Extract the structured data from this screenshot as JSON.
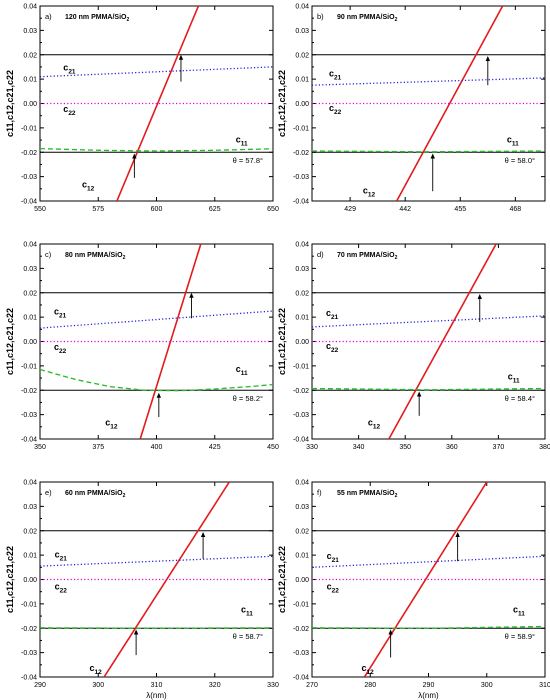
{
  "chart_data": [
    {
      "type": "line",
      "panel_label": "a)",
      "title": "120 nm PMMA/SiO",
      "title_sub": "2",
      "angle": "θ = 57.8°",
      "ylabel": "c11,c12,c21,c22",
      "xlabel": "",
      "xlim": [
        550,
        650
      ],
      "ylim": [
        -0.04,
        0.04
      ],
      "xticks": [
        "550",
        "575",
        "600",
        "625",
        "650"
      ],
      "yticks": [
        "-0.04",
        "-0.03",
        "-0.02",
        "-0.01",
        "0.00",
        "0.01",
        "0.02",
        "0.03",
        "0.04"
      ],
      "hlines": [
        0.02,
        -0.02
      ],
      "series": [
        {
          "name": "c12",
          "style": "solid",
          "color": "#e41a1c",
          "x": [
            583,
            618
          ],
          "y": [
            -0.04,
            0.04
          ]
        },
        {
          "name": "c21",
          "style": "dotted",
          "color": "#2222dd",
          "x": [
            550,
            650
          ],
          "y": [
            0.011,
            0.015
          ]
        },
        {
          "name": "c22",
          "style": "dotted",
          "color": "#e000e0",
          "x": [
            550,
            650
          ],
          "y": [
            0.0,
            0.0
          ]
        },
        {
          "name": "c11",
          "style": "dashed",
          "color": "#22bb22",
          "x": [
            550,
            575,
            600,
            625,
            650
          ],
          "y": [
            -0.0185,
            -0.0192,
            -0.0195,
            -0.0192,
            -0.0186
          ]
        }
      ],
      "arrows": [
        {
          "x": 610.5,
          "y_from": 0.009,
          "y_to": 0.02
        },
        {
          "x": 590.5,
          "y_from": -0.0305,
          "y_to": -0.0205
        }
      ],
      "labels": [
        {
          "text": "c",
          "sub": "21",
          "x": 560,
          "y": 0.0135
        },
        {
          "text": "c",
          "sub": "22",
          "x": 560,
          "y": -0.0035
        },
        {
          "text": "c",
          "sub": "11",
          "x": 634,
          "y": -0.016
        },
        {
          "text": "c",
          "sub": "12",
          "x": 568,
          "y": -0.0345
        }
      ]
    },
    {
      "type": "line",
      "panel_label": "b)",
      "title": "90 nm PMMA/SiO",
      "title_sub": "2",
      "angle": "θ = 58.0°",
      "ylabel": "c11,c12,c21,c22",
      "xlabel": "",
      "xlim": [
        420,
        475
      ],
      "ylim": [
        -0.04,
        0.04
      ],
      "xticks": [
        "429",
        "442",
        "455",
        "468"
      ],
      "xtick_values": [
        429,
        442,
        455,
        468
      ],
      "yticks": [
        "-0.04",
        "-0.03",
        "-0.02",
        "-0.01",
        "0.00",
        "0.01",
        "0.02",
        "0.03",
        "0.04"
      ],
      "hlines": [
        0.02,
        -0.02
      ],
      "series": [
        {
          "name": "c12",
          "style": "solid",
          "color": "#e41a1c",
          "x": [
            440,
            465
          ],
          "y": [
            -0.04,
            0.04
          ]
        },
        {
          "name": "c21",
          "style": "dotted",
          "color": "#2222dd",
          "x": [
            420,
            475
          ],
          "y": [
            0.0075,
            0.0105
          ]
        },
        {
          "name": "c22",
          "style": "dotted",
          "color": "#e000e0",
          "x": [
            420,
            475
          ],
          "y": [
            0.0,
            0.0
          ]
        },
        {
          "name": "c11",
          "style": "dashed",
          "color": "#22bb22",
          "x": [
            420,
            447,
            475
          ],
          "y": [
            -0.0195,
            -0.0198,
            -0.0195
          ]
        }
      ],
      "arrows": [
        {
          "x": 461.5,
          "y_from": 0.0075,
          "y_to": 0.0195
        },
        {
          "x": 448.5,
          "y_from": -0.036,
          "y_to": -0.0205
        }
      ],
      "labels": [
        {
          "text": "c",
          "sub": "21",
          "x": 424,
          "y": 0.011
        },
        {
          "text": "c",
          "sub": "22",
          "x": 424,
          "y": -0.003
        },
        {
          "text": "c",
          "sub": "11",
          "x": 466,
          "y": -0.016
        },
        {
          "text": "c",
          "sub": "12",
          "x": 432,
          "y": -0.037
        }
      ]
    },
    {
      "type": "line",
      "panel_label": "c)",
      "title": "80 nm PMMA/SiO",
      "title_sub": "2",
      "angle": "θ = 58.2°",
      "ylabel": "c11,c12,c21,c22",
      "xlabel": "",
      "xlim": [
        350,
        450
      ],
      "ylim": [
        -0.04,
        0.04
      ],
      "xticks": [
        "350",
        "375",
        "400",
        "425",
        "450"
      ],
      "yticks": [
        "-0.04",
        "-0.03",
        "-0.02",
        "-0.01",
        "0.00",
        "0.01",
        "0.02",
        "0.03",
        "0.04"
      ],
      "hlines": [
        0.02,
        -0.02
      ],
      "series": [
        {
          "name": "c12",
          "style": "solid",
          "color": "#e41a1c",
          "x": [
            393,
            419
          ],
          "y": [
            -0.04,
            0.04
          ]
        },
        {
          "name": "c21",
          "style": "dotted",
          "color": "#2222dd",
          "x": [
            350,
            450
          ],
          "y": [
            0.0055,
            0.0125
          ]
        },
        {
          "name": "c22",
          "style": "dotted",
          "color": "#e000e0",
          "x": [
            350,
            450
          ],
          "y": [
            0.0,
            0.0
          ]
        },
        {
          "name": "c11",
          "style": "dashed",
          "color": "#22bb22",
          "x": [
            350,
            365,
            380,
            395,
            410,
            425,
            440,
            450
          ],
          "y": [
            -0.0115,
            -0.0155,
            -0.0185,
            -0.02,
            -0.0202,
            -0.0195,
            -0.0185,
            -0.0177
          ]
        }
      ],
      "arrows": [
        {
          "x": 415,
          "y_from": 0.0095,
          "y_to": 0.02
        },
        {
          "x": 401,
          "y_from": -0.031,
          "y_to": -0.021
        }
      ],
      "labels": [
        {
          "text": "c",
          "sub": "21",
          "x": 356,
          "y": 0.011
        },
        {
          "text": "c",
          "sub": "22",
          "x": 356,
          "y": -0.0035
        },
        {
          "text": "c",
          "sub": "11",
          "x": 434,
          "y": -0.0125
        },
        {
          "text": "c",
          "sub": "12",
          "x": 378,
          "y": -0.0345
        }
      ]
    },
    {
      "type": "line",
      "panel_label": "d)",
      "title": "70 nm PMMA/SiO",
      "title_sub": "2",
      "angle": "θ = 58.4°",
      "ylabel": "c11,c12,c21,c22",
      "xlabel": "",
      "xlim": [
        330,
        380
      ],
      "ylim": [
        -0.04,
        0.04
      ],
      "xticks": [
        "330",
        "340",
        "350",
        "360",
        "370",
        "380"
      ],
      "yticks": [
        "-0.04",
        "-0.03",
        "-0.02",
        "-0.01",
        "0.00",
        "0.01",
        "0.02",
        "0.03",
        "0.04"
      ],
      "hlines": [
        0.02,
        -0.02
      ],
      "series": [
        {
          "name": "c12",
          "style": "solid",
          "color": "#e41a1c",
          "x": [
            346.5,
            369.5
          ],
          "y": [
            -0.04,
            0.04
          ]
        },
        {
          "name": "c21",
          "style": "dotted",
          "color": "#2222dd",
          "x": [
            330,
            380
          ],
          "y": [
            0.006,
            0.0105
          ]
        },
        {
          "name": "c22",
          "style": "dotted",
          "color": "#e000e0",
          "x": [
            330,
            380
          ],
          "y": [
            0.0,
            0.0
          ]
        },
        {
          "name": "c11",
          "style": "dashed",
          "color": "#22bb22",
          "x": [
            330,
            355,
            380
          ],
          "y": [
            -0.0193,
            -0.0198,
            -0.0193
          ]
        }
      ],
      "arrows": [
        {
          "x": 366,
          "y_from": 0.008,
          "y_to": 0.0195
        },
        {
          "x": 353,
          "y_from": -0.0305,
          "y_to": -0.0205
        }
      ],
      "labels": [
        {
          "text": "c",
          "sub": "21",
          "x": 333,
          "y": 0.0105
        },
        {
          "text": "c",
          "sub": "22",
          "x": 333,
          "y": -0.003
        },
        {
          "text": "c",
          "sub": "11",
          "x": 372,
          "y": -0.0155
        },
        {
          "text": "c",
          "sub": "12",
          "x": 342,
          "y": -0.0345
        }
      ]
    },
    {
      "type": "line",
      "panel_label": "e)",
      "title": "60 nm PMMA/SiO",
      "title_sub": "2",
      "angle": "θ = 58.7°",
      "ylabel": "c11,c12,c21,c22",
      "xlabel": "λ(nm)",
      "xlim": [
        290,
        330
      ],
      "ylim": [
        -0.04,
        0.04
      ],
      "xticks": [
        "290",
        "300",
        "310",
        "320",
        "330"
      ],
      "yticks": [
        "-0.04",
        "-0.03",
        "-0.02",
        "-0.01",
        "0.00",
        "0.01",
        "0.02",
        "0.03",
        "0.04"
      ],
      "hlines": [
        0.02,
        -0.02
      ],
      "series": [
        {
          "name": "c12",
          "style": "solid",
          "color": "#e41a1c",
          "x": [
            301,
            322.5
          ],
          "y": [
            -0.04,
            0.04
          ]
        },
        {
          "name": "c21",
          "style": "dotted",
          "color": "#2222dd",
          "x": [
            290,
            330
          ],
          "y": [
            0.0055,
            0.0095
          ]
        },
        {
          "name": "c22",
          "style": "dotted",
          "color": "#e000e0",
          "x": [
            290,
            330
          ],
          "y": [
            0.0,
            0.0
          ]
        },
        {
          "name": "c11",
          "style": "dashed",
          "color": "#22bb22",
          "x": [
            290,
            310,
            330
          ],
          "y": [
            -0.0198,
            -0.02,
            -0.0198
          ]
        }
      ],
      "arrows": [
        {
          "x": 318,
          "y_from": 0.0085,
          "y_to": 0.0195
        },
        {
          "x": 306.5,
          "y_from": -0.031,
          "y_to": -0.0205
        }
      ],
      "labels": [
        {
          "text": "c",
          "sub": "21",
          "x": 292.5,
          "y": 0.009
        },
        {
          "text": "c",
          "sub": "22",
          "x": 292.5,
          "y": -0.004
        },
        {
          "text": "c",
          "sub": "11",
          "x": 324.5,
          "y": -0.0135
        },
        {
          "text": "c",
          "sub": "12",
          "x": 298.5,
          "y": -0.0375
        }
      ]
    },
    {
      "type": "line",
      "panel_label": "f)",
      "title": "55 nm PMMA/SiO",
      "title_sub": "2",
      "angle": "θ = 58.9°",
      "ylabel": "c11,c12,c21,c22",
      "xlabel": "λ(nm)",
      "xlim": [
        270,
        310
      ],
      "ylim": [
        -0.04,
        0.04
      ],
      "xticks": [
        "270",
        "280",
        "290",
        "300",
        "310"
      ],
      "yticks": [
        "-0.04",
        "-0.03",
        "-0.02",
        "-0.01",
        "0.00",
        "0.01",
        "0.02",
        "0.03",
        "0.04"
      ],
      "hlines": [
        0.02,
        -0.02
      ],
      "series": [
        {
          "name": "c12",
          "style": "solid",
          "color": "#e41a1c",
          "x": [
            279,
            300
          ],
          "y": [
            -0.04,
            0.04
          ]
        },
        {
          "name": "c21",
          "style": "dotted",
          "color": "#2222dd",
          "x": [
            270,
            310
          ],
          "y": [
            0.005,
            0.0095
          ]
        },
        {
          "name": "c22",
          "style": "dotted",
          "color": "#e000e0",
          "x": [
            270,
            310
          ],
          "y": [
            0.0,
            0.0
          ]
        },
        {
          "name": "c11",
          "style": "dashed",
          "color": "#22bb22",
          "x": [
            270,
            290,
            310
          ],
          "y": [
            -0.0198,
            -0.02,
            -0.0193
          ]
        }
      ],
      "arrows": [
        {
          "x": 295,
          "y_from": 0.0075,
          "y_to": 0.0195
        },
        {
          "x": 283.5,
          "y_from": -0.032,
          "y_to": -0.0205
        }
      ],
      "labels": [
        {
          "text": "c",
          "sub": "21",
          "x": 272.5,
          "y": 0.0085
        },
        {
          "text": "c",
          "sub": "22",
          "x": 272.5,
          "y": -0.004
        },
        {
          "text": "c",
          "sub": "11",
          "x": 304.5,
          "y": -0.0135
        },
        {
          "text": "c",
          "sub": "12",
          "x": 278.5,
          "y": -0.0375
        }
      ]
    }
  ]
}
